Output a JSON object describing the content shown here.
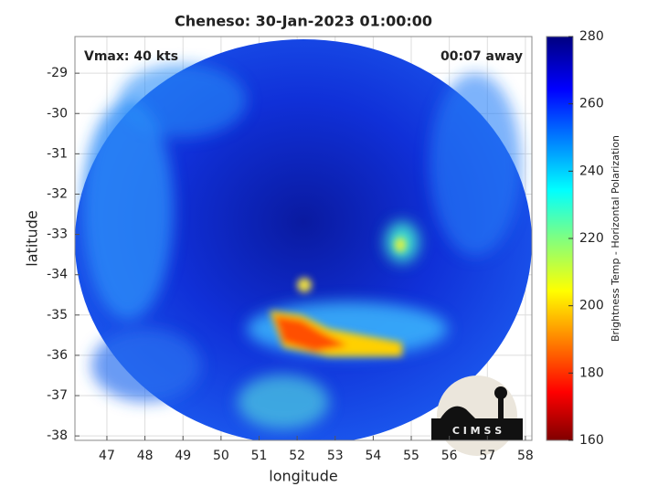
{
  "chart_data": {
    "type": "map",
    "title": "Cheneso: 30-Jan-2023 01:00:00",
    "annotation_left": "Vmax: 40 kts",
    "annotation_right": "00:07 away",
    "xlabel": "longitude",
    "ylabel": "latitude",
    "xlim": [
      46.16,
      58.17
    ],
    "xticks": [
      47,
      48,
      49,
      50,
      51,
      52,
      53,
      54,
      55,
      56,
      57,
      58
    ],
    "ylim": [
      -38.11,
      -28.09
    ],
    "yticks": [
      -29,
      -30,
      -31,
      -32,
      -33,
      -34,
      -35,
      -36,
      -37,
      -38
    ],
    "grid": true,
    "colorbar": {
      "label": "Brightness Temp - Horizontal Polarization",
      "clim": [
        160,
        280
      ],
      "ticks": [
        160,
        180,
        200,
        220,
        240,
        260,
        280
      ]
    },
    "logo_text": "C I M S S"
  }
}
